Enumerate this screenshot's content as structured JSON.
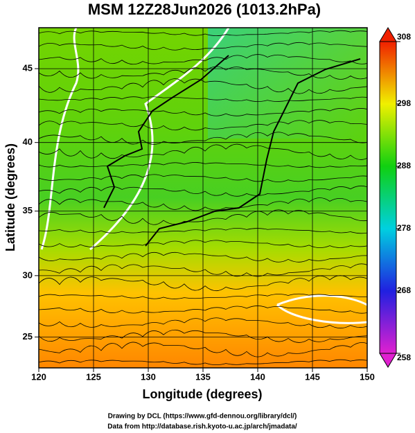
{
  "map": {
    "title": "MSM 12Z28Jun2026 (1013.2hPa)",
    "xlabel": "Longitude (degrees)",
    "ylabel": "Latitude  (degrees)",
    "xlim": [
      120,
      150
    ],
    "ylim": [
      22.4,
      47.6
    ],
    "xticks": [
      120,
      125,
      130,
      135,
      140,
      145,
      150
    ],
    "yticks": [
      25,
      30,
      35,
      40,
      45
    ],
    "grid": true,
    "colorbar": {
      "lim": [
        258,
        308
      ],
      "ticks": [
        258,
        268,
        278,
        288,
        298,
        308
      ]
    },
    "credits": [
      "Drawing by DCL (https://www.gfd-dennou.org/library/dcl/)",
      "Data from http://database.rish.kyoto-u.ac.jp/arch/jmadata/"
    ]
  }
}
